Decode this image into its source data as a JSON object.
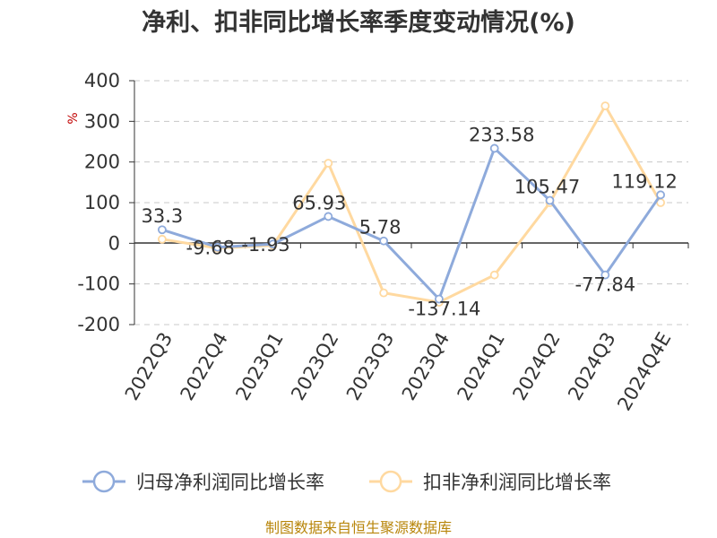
{
  "chart_data": {
    "type": "line",
    "title": "净利、扣非同比增长率季度变动情况(%)",
    "unit_label": "%",
    "categories": [
      "2022Q3",
      "2022Q4",
      "2023Q1",
      "2023Q2",
      "2023Q3",
      "2023Q4",
      "2024Q1",
      "2024Q2",
      "2024Q3",
      "2024Q4E"
    ],
    "ylim": [
      -200,
      400
    ],
    "yticks": [
      400,
      300,
      200,
      100,
      0,
      -100,
      -200
    ],
    "grid": true,
    "legend_position": "bottom",
    "series": [
      {
        "name": "归母净利润同比增长率",
        "color": "#8eaadb",
        "values": [
          33.3,
          -9.68,
          -1.93,
          65.93,
          5.78,
          -137.14,
          233.58,
          105.47,
          -77.84,
          119.12
        ],
        "labels": [
          "33.3",
          "-9.68",
          "-1.93",
          "65.93",
          "5.78",
          "-137.14",
          "233.58",
          "105.47",
          "-77.84",
          "119.12"
        ]
      },
      {
        "name": "扣非净利润同比增长率",
        "color": "#ffd9a0",
        "values": [
          10,
          -12,
          -5,
          197,
          -122,
          -145,
          -78,
          100,
          338,
          100
        ]
      }
    ],
    "source": "制图数据来自恒生聚源数据库"
  }
}
